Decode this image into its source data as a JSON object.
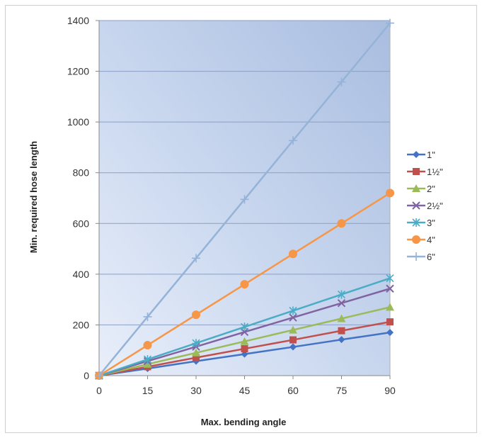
{
  "chart_data": {
    "type": "line",
    "title": "",
    "xlabel": "Max. bending angle",
    "ylabel": "Min. required hose length",
    "x": [
      0,
      15,
      30,
      45,
      60,
      75,
      90
    ],
    "xlim": [
      0,
      90
    ],
    "ylim": [
      0,
      1400
    ],
    "xticks": [
      "0",
      "15",
      "30",
      "45",
      "60",
      "75",
      "90"
    ],
    "yticks": [
      "0",
      "200",
      "400",
      "600",
      "800",
      "1000",
      "1200",
      "1400"
    ],
    "grid": true,
    "legend": "right",
    "series": [
      {
        "name": "1\"",
        "color": "#4472C4",
        "marker": "diamond",
        "values": [
          0,
          28,
          57,
          85,
          113,
          142,
          170
        ]
      },
      {
        "name": "1½\"",
        "color": "#C0504D",
        "marker": "square",
        "values": [
          0,
          35,
          71,
          106,
          141,
          177,
          212
        ]
      },
      {
        "name": "2\"",
        "color": "#9BBB59",
        "marker": "triangle",
        "values": [
          0,
          45,
          90,
          135,
          180,
          225,
          270
        ]
      },
      {
        "name": "2½\"",
        "color": "#8064A2",
        "marker": "x",
        "values": [
          0,
          57,
          114,
          172,
          229,
          286,
          343
        ]
      },
      {
        "name": "3\"",
        "color": "#4BACC6",
        "marker": "star",
        "values": [
          0,
          64,
          128,
          192,
          256,
          320,
          384
        ]
      },
      {
        "name": "4\"",
        "color": "#F79646",
        "marker": "circle",
        "values": [
          0,
          120,
          240,
          360,
          480,
          600,
          720
        ]
      },
      {
        "name": "6\"",
        "color": "#95B3D7",
        "marker": "plus",
        "values": [
          0,
          232,
          463,
          695,
          927,
          1158,
          1390
        ]
      }
    ]
  }
}
